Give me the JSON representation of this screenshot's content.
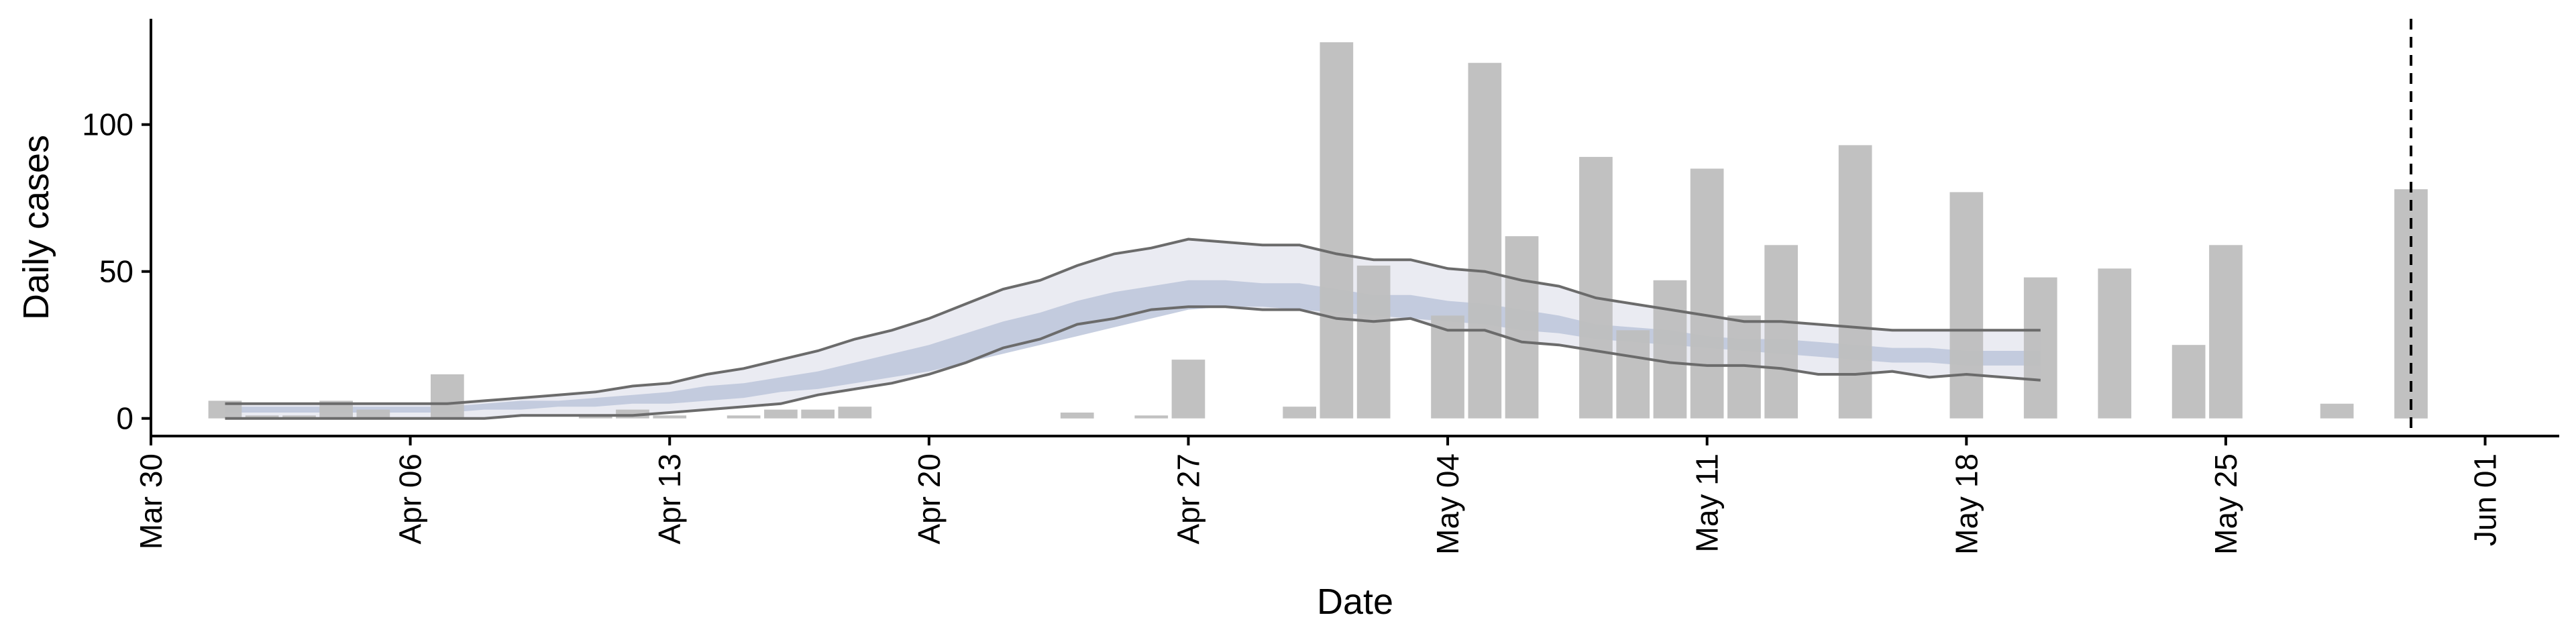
{
  "chart_data": {
    "type": "bar",
    "xlabel": "Date",
    "ylabel": "Daily cases",
    "xlim": [
      "2020-03-30",
      "2020-06-03"
    ],
    "ylim": [
      -6,
      136
    ],
    "grid": false,
    "x_ticks": [
      {
        "date": "2020-03-30",
        "label": "Mar 30"
      },
      {
        "date": "2020-04-06",
        "label": "Apr 06"
      },
      {
        "date": "2020-04-13",
        "label": "Apr 13"
      },
      {
        "date": "2020-04-20",
        "label": "Apr 20"
      },
      {
        "date": "2020-04-27",
        "label": "Apr 27"
      },
      {
        "date": "2020-05-04",
        "label": "May 04"
      },
      {
        "date": "2020-05-11",
        "label": "May 11"
      },
      {
        "date": "2020-05-18",
        "label": "May 18"
      },
      {
        "date": "2020-05-25",
        "label": "May 25"
      },
      {
        "date": "2020-06-01",
        "label": "Jun 01"
      }
    ],
    "y_ticks": [
      {
        "value": 0,
        "label": "0"
      },
      {
        "value": 50,
        "label": "50"
      },
      {
        "value": 100,
        "label": "100"
      }
    ],
    "cutoff_date": "2020-05-30",
    "colors": {
      "bars": "#bebebe",
      "outer_band": "#e6e8f0",
      "inner_band": "#bcc6da",
      "bound_lines": "#6b6b6b",
      "cutoff_line": "#000000"
    },
    "bars": [
      {
        "date": "2020-04-01",
        "value": 6
      },
      {
        "date": "2020-04-02",
        "value": 1
      },
      {
        "date": "2020-04-03",
        "value": 1
      },
      {
        "date": "2020-04-04",
        "value": 6
      },
      {
        "date": "2020-04-05",
        "value": 3
      },
      {
        "date": "2020-04-07",
        "value": 15
      },
      {
        "date": "2020-04-11",
        "value": 1
      },
      {
        "date": "2020-04-12",
        "value": 3
      },
      {
        "date": "2020-04-13",
        "value": 1
      },
      {
        "date": "2020-04-15",
        "value": 1
      },
      {
        "date": "2020-04-16",
        "value": 3
      },
      {
        "date": "2020-04-17",
        "value": 3
      },
      {
        "date": "2020-04-18",
        "value": 4
      },
      {
        "date": "2020-04-24",
        "value": 2
      },
      {
        "date": "2020-04-26",
        "value": 1
      },
      {
        "date": "2020-04-27",
        "value": 20
      },
      {
        "date": "2020-04-30",
        "value": 4
      },
      {
        "date": "2020-05-01",
        "value": 128
      },
      {
        "date": "2020-05-02",
        "value": 52
      },
      {
        "date": "2020-05-04",
        "value": 35
      },
      {
        "date": "2020-05-05",
        "value": 121
      },
      {
        "date": "2020-05-06",
        "value": 62
      },
      {
        "date": "2020-05-08",
        "value": 89
      },
      {
        "date": "2020-05-09",
        "value": 30
      },
      {
        "date": "2020-05-10",
        "value": 47
      },
      {
        "date": "2020-05-11",
        "value": 85
      },
      {
        "date": "2020-05-12",
        "value": 35
      },
      {
        "date": "2020-05-13",
        "value": 59
      },
      {
        "date": "2020-05-15",
        "value": 93
      },
      {
        "date": "2020-05-18",
        "value": 77
      },
      {
        "date": "2020-05-20",
        "value": 48
      },
      {
        "date": "2020-05-22",
        "value": 51
      },
      {
        "date": "2020-05-24",
        "value": 25
      },
      {
        "date": "2020-05-25",
        "value": 59
      },
      {
        "date": "2020-05-28",
        "value": 5
      },
      {
        "date": "2020-05-30",
        "value": 78
      }
    ],
    "estimate": {
      "dates": [
        "2020-04-01",
        "2020-04-02",
        "2020-04-03",
        "2020-04-04",
        "2020-04-05",
        "2020-04-06",
        "2020-04-07",
        "2020-04-08",
        "2020-04-09",
        "2020-04-10",
        "2020-04-11",
        "2020-04-12",
        "2020-04-13",
        "2020-04-14",
        "2020-04-15",
        "2020-04-16",
        "2020-04-17",
        "2020-04-18",
        "2020-04-19",
        "2020-04-20",
        "2020-04-21",
        "2020-04-22",
        "2020-04-23",
        "2020-04-24",
        "2020-04-25",
        "2020-04-26",
        "2020-04-27",
        "2020-04-28",
        "2020-04-29",
        "2020-04-30",
        "2020-05-01",
        "2020-05-02",
        "2020-05-03",
        "2020-05-04",
        "2020-05-05",
        "2020-05-06",
        "2020-05-07",
        "2020-05-08",
        "2020-05-09",
        "2020-05-10",
        "2020-05-11",
        "2020-05-12",
        "2020-05-13",
        "2020-05-14",
        "2020-05-15",
        "2020-05-16",
        "2020-05-17",
        "2020-05-18",
        "2020-05-19",
        "2020-05-20"
      ],
      "upper": [
        5,
        5,
        5,
        5,
        5,
        5,
        5,
        6,
        7,
        8,
        9,
        11,
        12,
        15,
        17,
        20,
        23,
        27,
        30,
        34,
        39,
        44,
        47,
        52,
        56,
        58,
        61,
        60,
        59,
        59,
        56,
        54,
        54,
        51,
        50,
        47,
        45,
        41,
        39,
        37,
        35,
        33,
        33,
        32,
        31,
        30,
        30,
        30,
        30,
        30
      ],
      "upper_mid": [
        4,
        4,
        4,
        4,
        4,
        4,
        4,
        5,
        6,
        6,
        7,
        8,
        9,
        11,
        12,
        14,
        16,
        19,
        22,
        25,
        29,
        33,
        36,
        40,
        43,
        45,
        47,
        47,
        46,
        46,
        44,
        42,
        42,
        40,
        39,
        37,
        35,
        32,
        31,
        30,
        28,
        27,
        27,
        26,
        25,
        24,
        24,
        23,
        23,
        23
      ],
      "median": [
        3,
        3,
        3,
        3,
        3,
        3,
        3,
        4,
        4,
        5,
        5,
        6,
        7,
        8,
        9,
        11,
        13,
        15,
        17,
        20,
        23,
        26,
        29,
        33,
        36,
        40,
        43,
        43,
        44,
        44,
        42,
        40,
        39,
        37,
        36,
        34,
        32,
        30,
        29,
        28,
        27,
        26,
        25,
        24,
        23,
        22,
        22,
        21,
        21,
        21
      ],
      "lower_mid": [
        2,
        2,
        2,
        2,
        2,
        2,
        2,
        3,
        3,
        4,
        4,
        5,
        5,
        6,
        7,
        9,
        10,
        12,
        14,
        16,
        19,
        22,
        25,
        28,
        31,
        34,
        37,
        38,
        38,
        37,
        36,
        35,
        34,
        33,
        32,
        30,
        29,
        27,
        26,
        25,
        24,
        23,
        22,
        21,
        20,
        19,
        19,
        18,
        18,
        18
      ],
      "lower": [
        0,
        0,
        0,
        0,
        0,
        0,
        0,
        0,
        1,
        1,
        1,
        1,
        2,
        3,
        4,
        5,
        8,
        10,
        12,
        15,
        19,
        24,
        27,
        32,
        34,
        37,
        38,
        38,
        37,
        37,
        34,
        33,
        34,
        30,
        30,
        26,
        25,
        23,
        21,
        19,
        18,
        18,
        17,
        15,
        15,
        16,
        14,
        15,
        14,
        13
      ]
    }
  }
}
